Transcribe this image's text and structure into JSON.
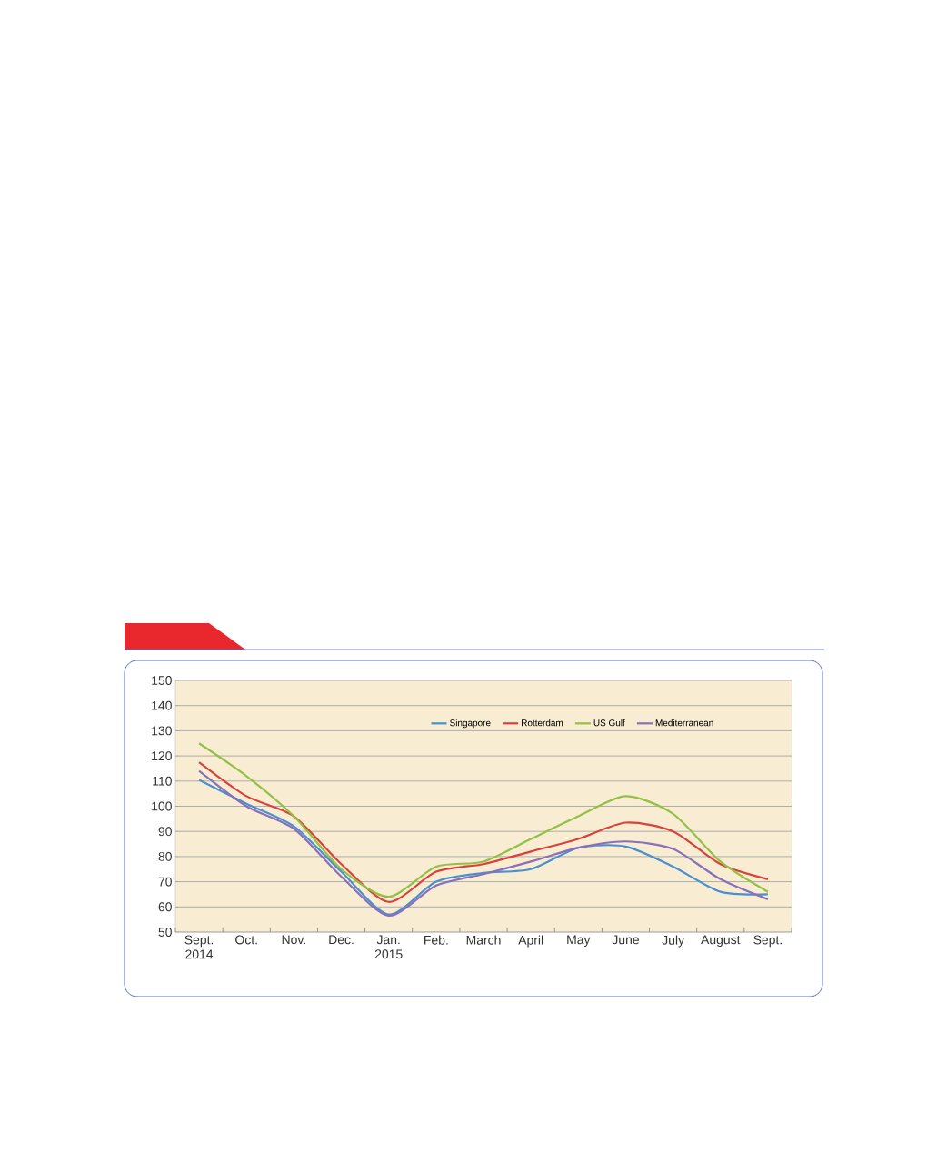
{
  "chart_data": {
    "type": "line",
    "categories": [
      "Sept. 2014",
      "Oct.",
      "Nov.",
      "Dec.",
      "Jan. 2015",
      "Feb.",
      "March",
      "April",
      "May",
      "June",
      "July",
      "August",
      "Sept."
    ],
    "series": [
      {
        "name": "Singapore",
        "color": "#4a90cf",
        "values": [
          110.5,
          101,
          92,
          74,
          57,
          70,
          73.5,
          75,
          83.5,
          84,
          76,
          66,
          65
        ]
      },
      {
        "name": "Rotterdam",
        "color": "#d9423a",
        "values": [
          117.5,
          104,
          96,
          77,
          62,
          74,
          77,
          82,
          87,
          93.5,
          90,
          77,
          71
        ]
      },
      {
        "name": "US Gulf",
        "color": "#93c045",
        "values": [
          125,
          112,
          96,
          75,
          64,
          76,
          78,
          87,
          96,
          104,
          97,
          78,
          66
        ]
      },
      {
        "name": "Mediterranean",
        "color": "#8a6fba",
        "values": [
          114,
          100,
          91,
          72,
          56.5,
          68.5,
          73,
          78,
          83.5,
          86,
          83,
          71,
          63
        ]
      }
    ],
    "ylim": [
      50,
      150
    ],
    "yticks": [
      50,
      60,
      70,
      80,
      90,
      100,
      110,
      120,
      130,
      140,
      150
    ],
    "grid": "y",
    "legend": "top",
    "marker": "none",
    "line_style": "solid"
  }
}
